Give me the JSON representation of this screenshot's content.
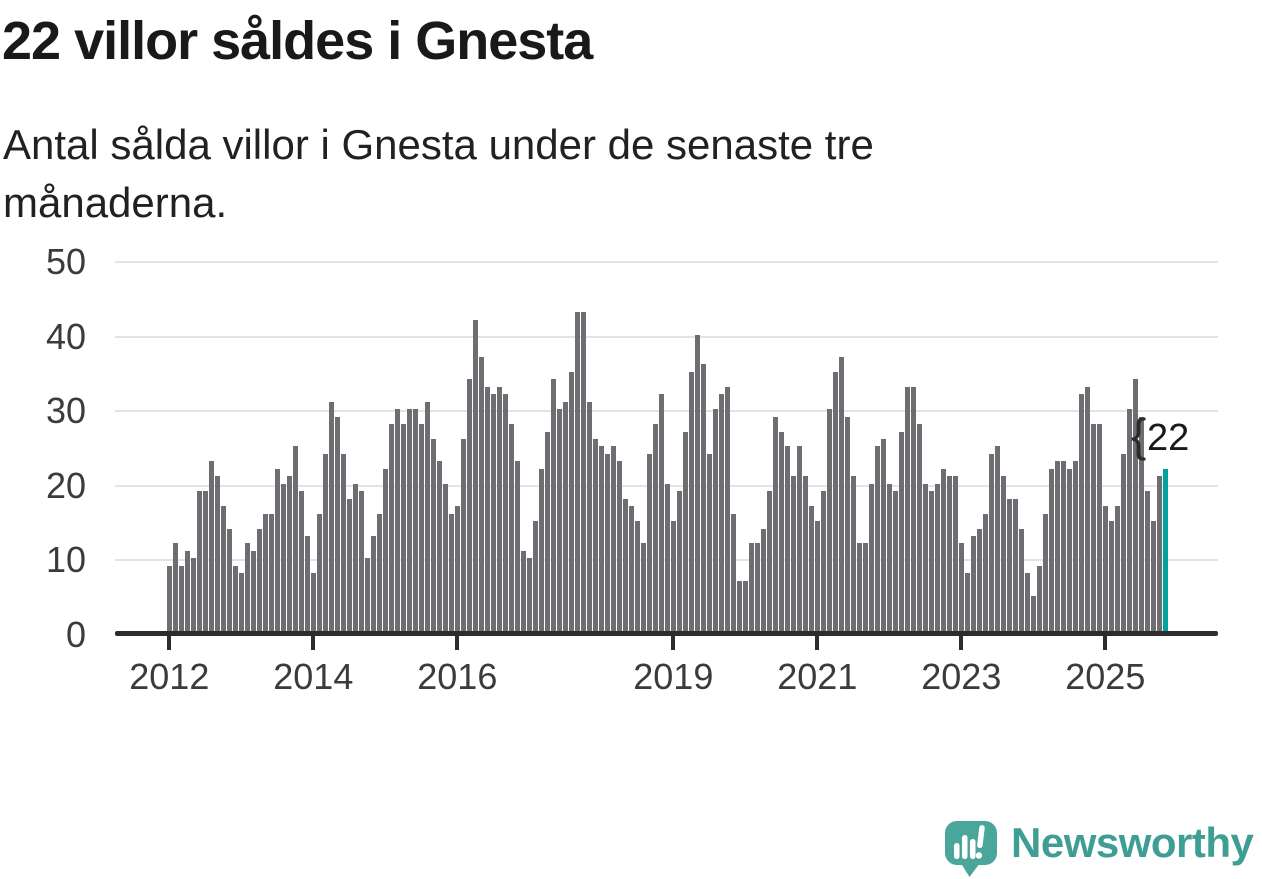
{
  "header": {
    "title": "22 villor såldes i Gnesta",
    "subtitle_lines": [
      "Antal sålda villor i Gnesta under de senaste tre",
      "månaderna."
    ]
  },
  "chart_data": {
    "type": "bar",
    "title": "22 villor såldes i Gnesta",
    "subtitle": "Antal sålda villor i Gnesta under de senaste tre månaderna.",
    "x_unit": "month",
    "x_start": "2012-01",
    "x_end": "2025-11",
    "x_tick_labels": [
      "2012",
      "2014",
      "2016",
      "2019",
      "2021",
      "2023",
      "2025"
    ],
    "x_tick_years": [
      2012,
      2014,
      2016,
      2019,
      2021,
      2023,
      2025
    ],
    "y_ticks": [
      0,
      10,
      20,
      30,
      40,
      50
    ],
    "ylim": [
      0,
      50
    ],
    "grid": true,
    "legend": false,
    "bar_color": "#6d6d72",
    "highlight_color": "#00a49c",
    "highlight_index": 166,
    "annotation": {
      "label": "22",
      "connector": "curly-brace"
    },
    "values": [
      9,
      12,
      9,
      11,
      10,
      19,
      19,
      23,
      21,
      17,
      14,
      9,
      8,
      12,
      11,
      14,
      16,
      16,
      22,
      20,
      21,
      25,
      19,
      13,
      8,
      16,
      24,
      31,
      29,
      24,
      18,
      20,
      19,
      10,
      13,
      16,
      22,
      28,
      30,
      28,
      30,
      30,
      28,
      31,
      26,
      23,
      20,
      16,
      17,
      26,
      34,
      42,
      37,
      33,
      32,
      33,
      32,
      28,
      23,
      11,
      10,
      15,
      22,
      27,
      34,
      30,
      31,
      35,
      43,
      43,
      31,
      26,
      25,
      24,
      25,
      23,
      18,
      17,
      15,
      12,
      24,
      28,
      32,
      20,
      15,
      19,
      27,
      35,
      40,
      36,
      24,
      30,
      32,
      33,
      16,
      7,
      7,
      12,
      12,
      14,
      19,
      29,
      27,
      25,
      21,
      25,
      21,
      17,
      15,
      19,
      30,
      35,
      37,
      29,
      21,
      12,
      12,
      20,
      25,
      26,
      20,
      19,
      27,
      33,
      33,
      28,
      20,
      19,
      20,
      22,
      21,
      21,
      12,
      8,
      13,
      14,
      16,
      24,
      25,
      21,
      18,
      18,
      14,
      8,
      5,
      9,
      16,
      22,
      23,
      23,
      22,
      23,
      32,
      33,
      28,
      28,
      17,
      15,
      17,
      24,
      30,
      34,
      29,
      19,
      15,
      21,
      22
    ]
  },
  "footer": {
    "brand": "Newsworthy",
    "logo_icon": "speech-bubble-bar-chart-icon"
  },
  "colors": {
    "bar": "#6d6d72",
    "highlight": "#00a49c",
    "gridline": "#e3e3e3",
    "axis": "#2d2d2d",
    "brand_teal": "#3f9e94",
    "logo_bubble": "#4aa59b"
  }
}
